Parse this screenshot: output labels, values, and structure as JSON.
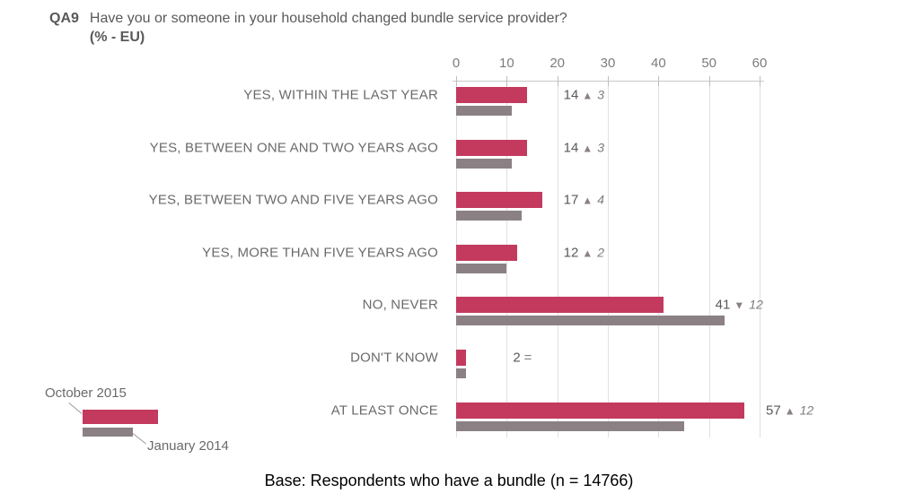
{
  "title": {
    "code": "QA9",
    "text": "Have you or someone in your household changed bundle service provider?",
    "subtitle": "(% - EU)"
  },
  "base_note": "Base: Respondents who have a bundle (n = 14766)",
  "legend": {
    "items": [
      {
        "label": "October 2015",
        "color": "#c33a5e"
      },
      {
        "label": "January 2014",
        "color": "#8b8084"
      }
    ]
  },
  "chart_data": {
    "type": "bar",
    "orientation": "horizontal",
    "title": "QA9 Have you or someone in your household changed bundle service provider? (% - EU)",
    "categories": [
      "YES, WITHIN THE LAST YEAR",
      "YES, BETWEEN ONE AND TWO YEARS AGO",
      "YES, BETWEEN TWO AND FIVE YEARS AGO",
      "YES, MORE THAN FIVE YEARS AGO",
      "NO, NEVER",
      "DON'T KNOW",
      "AT LEAST ONCE"
    ],
    "series": [
      {
        "name": "October 2015",
        "color": "#c33a5e",
        "values": [
          14,
          14,
          17,
          12,
          41,
          2,
          57
        ]
      },
      {
        "name": "January 2014",
        "color": "#8b8084",
        "values": [
          11,
          11,
          13,
          10,
          53,
          2,
          45
        ]
      }
    ],
    "annotations": [
      {
        "value": "14",
        "direction": "up",
        "delta": "3"
      },
      {
        "value": "14",
        "direction": "up",
        "delta": "3"
      },
      {
        "value": "17",
        "direction": "up",
        "delta": "4"
      },
      {
        "value": "12",
        "direction": "up",
        "delta": "2"
      },
      {
        "value": "41",
        "direction": "down",
        "delta": "12"
      },
      {
        "value": "2",
        "direction": "equal",
        "delta": ""
      },
      {
        "value": "57",
        "direction": "up",
        "delta": "12"
      }
    ],
    "marker_glyphs": {
      "up": "▲",
      "down": "▼",
      "equal": "="
    },
    "xlim": [
      0,
      60
    ],
    "xticks": [
      0,
      10,
      20,
      30,
      40,
      50,
      60
    ],
    "grid": true,
    "axis_position": "top",
    "legend_position": "bottom-left"
  }
}
